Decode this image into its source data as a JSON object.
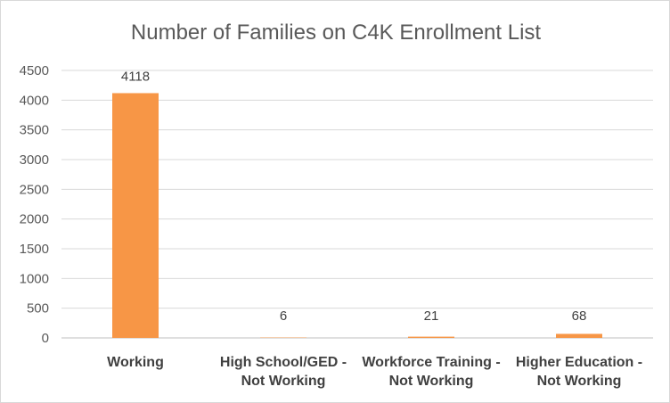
{
  "chart_data": {
    "type": "bar",
    "title": "Number of Families on C4K Enrollment List",
    "categories": [
      [
        "Working"
      ],
      [
        "High School/GED -",
        "Not Working"
      ],
      [
        "Workforce Training -",
        "Not Working"
      ],
      [
        "Higher Education -",
        "Not Working"
      ]
    ],
    "values": [
      4118,
      6,
      21,
      68
    ],
    "data_labels": [
      "4118",
      "6",
      "21",
      "68"
    ],
    "ylim": [
      0,
      4500
    ],
    "yticks": [
      0,
      500,
      1000,
      1500,
      2000,
      2500,
      3000,
      3500,
      4000,
      4500
    ],
    "grid": true,
    "legend": "none",
    "bar_color": "#F79646"
  }
}
